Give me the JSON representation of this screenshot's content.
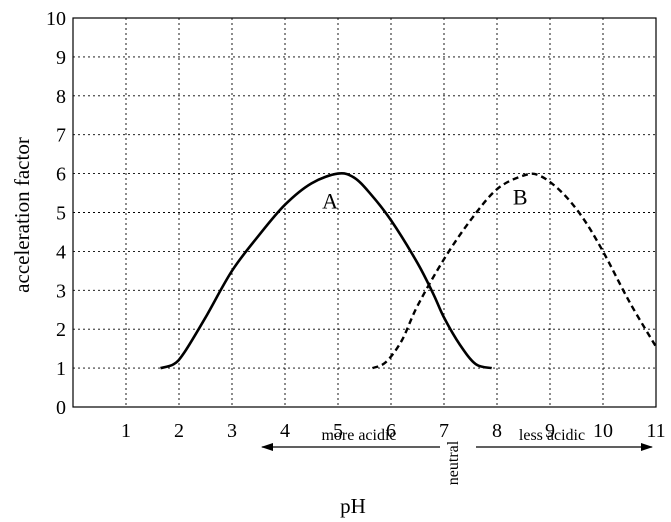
{
  "chart_data": {
    "type": "line",
    "title": "",
    "xlabel": "pH",
    "ylabel": "acceleration factor",
    "xlim": [
      0,
      11
    ],
    "ylim": [
      0,
      10
    ],
    "xticks": [
      "1",
      "2",
      "3",
      "4",
      "5",
      "6",
      "7",
      "8",
      "9",
      "10",
      "11"
    ],
    "yticks": [
      "0",
      "1",
      "2",
      "3",
      "4",
      "5",
      "6",
      "7",
      "8",
      "9",
      "10"
    ],
    "grid": true,
    "series": [
      {
        "name": "A",
        "style": "solid",
        "color": "#000000",
        "points": [
          [
            1.65,
            1.0
          ],
          [
            1.9,
            1.1
          ],
          [
            2.1,
            1.4
          ],
          [
            2.5,
            2.3
          ],
          [
            3.0,
            3.5
          ],
          [
            3.5,
            4.4
          ],
          [
            4.0,
            5.2
          ],
          [
            4.5,
            5.75
          ],
          [
            5.0,
            6.0
          ],
          [
            5.3,
            5.9
          ],
          [
            5.6,
            5.5
          ],
          [
            6.0,
            4.8
          ],
          [
            6.5,
            3.7
          ],
          [
            6.8,
            2.9
          ],
          [
            7.0,
            2.3
          ],
          [
            7.3,
            1.6
          ],
          [
            7.6,
            1.1
          ],
          [
            7.9,
            1.0
          ]
        ]
      },
      {
        "name": "B",
        "style": "dashed",
        "color": "#000000",
        "points": [
          [
            5.65,
            1.0
          ],
          [
            5.9,
            1.15
          ],
          [
            6.2,
            1.7
          ],
          [
            6.5,
            2.6
          ],
          [
            7.0,
            3.8
          ],
          [
            7.5,
            4.8
          ],
          [
            8.0,
            5.6
          ],
          [
            8.5,
            5.95
          ],
          [
            8.8,
            5.95
          ],
          [
            9.2,
            5.55
          ],
          [
            9.6,
            4.9
          ],
          [
            10.0,
            4.0
          ],
          [
            10.5,
            2.7
          ],
          [
            11.0,
            1.55
          ]
        ]
      }
    ],
    "annotations": {
      "left_arrow": "more acidic",
      "center": "neutral",
      "right_arrow": "less acidic"
    },
    "curve_labels": [
      {
        "text": "A",
        "x": 4.7,
        "y": 5.1
      },
      {
        "text": "B",
        "x": 8.3,
        "y": 5.2
      }
    ]
  }
}
